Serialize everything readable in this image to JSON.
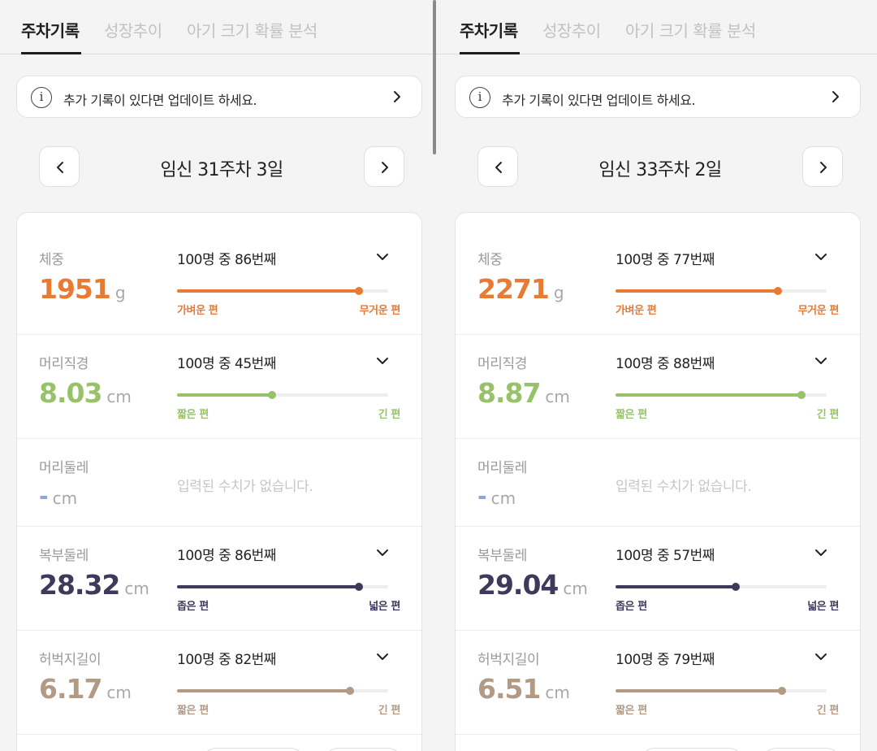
{
  "tabs": [
    "주차기록",
    "성장추이",
    "아기 크기 확률 분석"
  ],
  "notice": "추가 기록이 있다면 업데이트 하세요.",
  "colors": {
    "weight": "#e97a32",
    "head": "#97c26a",
    "empty": "#8aa7d8",
    "abdomen": "#3d3a5c",
    "femur": "#b39a85"
  },
  "screens": [
    {
      "week_label": "임신 31주차 3일",
      "metrics": {
        "weight": {
          "label": "체중",
          "value": "1951",
          "unit": "g",
          "rank": "100명 중 86번째",
          "percentile": 86,
          "lo": "가벼운 편",
          "hi": "무거운 편"
        },
        "bpd": {
          "label": "머리직경",
          "value": "8.03",
          "unit": "cm",
          "rank": "100명 중 45번째",
          "percentile": 45,
          "lo": "짧은 편",
          "hi": "긴 편"
        },
        "hc": {
          "label": "머리둘레",
          "value": "-",
          "unit": "cm",
          "empty": "입력된 수치가 없습니다."
        },
        "ac": {
          "label": "복부둘레",
          "value": "28.32",
          "unit": "cm",
          "rank": "100명 중 86번째",
          "percentile": 86,
          "lo": "좁은 편",
          "hi": "넓은 편"
        },
        "fl": {
          "label": "허벅지길이",
          "value": "6.17",
          "unit": "cm",
          "rank": "100명 중 82번째",
          "percentile": 82,
          "lo": "짧은 편",
          "hi": "긴 편"
        }
      }
    },
    {
      "week_label": "임신 33주차 2일",
      "metrics": {
        "weight": {
          "label": "체중",
          "value": "2271",
          "unit": "g",
          "rank": "100명 중 77번째",
          "percentile": 77,
          "lo": "가벼운 편",
          "hi": "무거운 편"
        },
        "bpd": {
          "label": "머리직경",
          "value": "8.87",
          "unit": "cm",
          "rank": "100명 중 88번째",
          "percentile": 88,
          "lo": "짧은 편",
          "hi": "긴 편"
        },
        "hc": {
          "label": "머리둘레",
          "value": "-",
          "unit": "cm",
          "empty": "입력된 수치가 없습니다."
        },
        "ac": {
          "label": "복부둘레",
          "value": "29.04",
          "unit": "cm",
          "rank": "100명 중 57번째",
          "percentile": 57,
          "lo": "좁은 편",
          "hi": "넓은 편"
        },
        "fl": {
          "label": "허벅지길이",
          "value": "6.51",
          "unit": "cm",
          "rank": "100명 중 79번째",
          "percentile": 79,
          "lo": "짧은 편",
          "hi": "긴 편"
        }
      }
    }
  ]
}
